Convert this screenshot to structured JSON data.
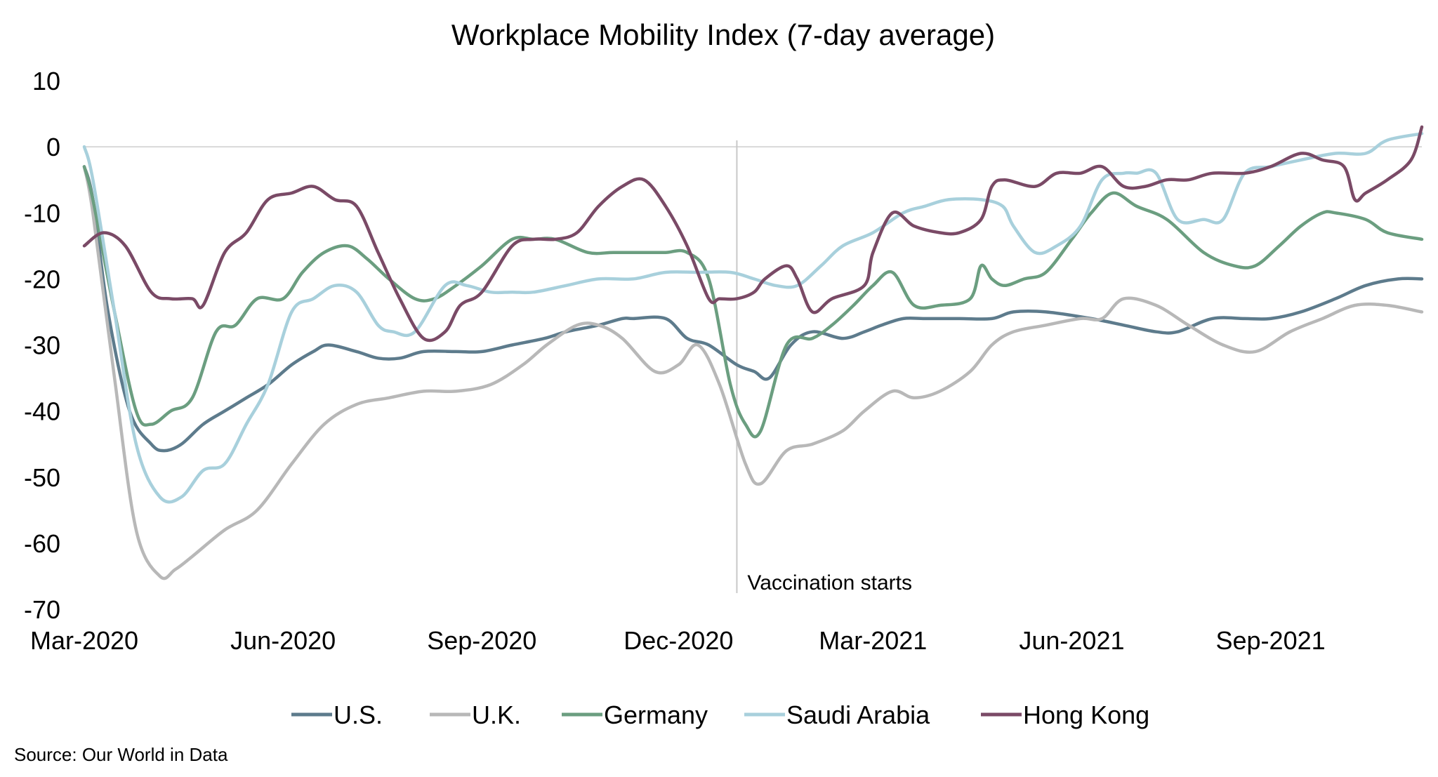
{
  "chart_data": {
    "type": "line",
    "title": "Workplace Mobility Index (7-day average)",
    "source": "Source: Our World in Data",
    "ylim": [
      -70,
      10
    ],
    "yticks": [
      10,
      0,
      -10,
      -20,
      -30,
      -40,
      -50,
      -60,
      -70
    ],
    "x_start": "2020-03-01",
    "x_end": "2021-11-10",
    "x_ticks": [
      {
        "date": "2020-03-01",
        "label": "Mar-2020"
      },
      {
        "date": "2020-06-01",
        "label": "Jun-2020"
      },
      {
        "date": "2020-09-01",
        "label": "Sep-2020"
      },
      {
        "date": "2020-12-01",
        "label": "Dec-2020"
      },
      {
        "date": "2021-03-01",
        "label": "Mar-2021"
      },
      {
        "date": "2021-06-01",
        "label": "Jun-2021"
      },
      {
        "date": "2021-09-01",
        "label": "Sep-2021"
      }
    ],
    "annotation": {
      "date": "2020-12-28",
      "label": "Vaccination starts"
    },
    "grid": false,
    "legend_position": "bottom",
    "series": [
      {
        "name": "U.S.",
        "color": "#5d7b8c",
        "x": [
          "2020-03-01",
          "2020-03-05",
          "2020-03-12",
          "2020-03-22",
          "2020-04-01",
          "2020-04-07",
          "2020-04-15",
          "2020-04-25",
          "2020-05-05",
          "2020-05-15",
          "2020-05-25",
          "2020-06-05",
          "2020-06-15",
          "2020-06-22",
          "2020-07-05",
          "2020-07-15",
          "2020-07-25",
          "2020-08-05",
          "2020-08-20",
          "2020-09-01",
          "2020-09-15",
          "2020-09-30",
          "2020-10-10",
          "2020-10-25",
          "2020-11-05",
          "2020-11-10",
          "2020-11-25",
          "2020-12-05",
          "2020-12-15",
          "2020-12-28",
          "2021-01-05",
          "2021-01-12",
          "2021-01-22",
          "2021-02-01",
          "2021-02-15",
          "2021-02-25",
          "2021-03-05",
          "2021-03-15",
          "2021-03-25",
          "2021-04-10",
          "2021-04-25",
          "2021-05-05",
          "2021-05-20",
          "2021-06-10",
          "2021-06-25",
          "2021-07-10",
          "2021-07-20",
          "2021-08-05",
          "2021-08-20",
          "2021-09-01",
          "2021-09-15",
          "2021-10-01",
          "2021-10-15",
          "2021-10-30",
          "2021-11-10"
        ],
        "values": [
          -3,
          -8,
          -25,
          -40,
          -45,
          -46,
          -45,
          -42,
          -40,
          -38,
          -36,
          -33,
          -31,
          -30,
          -31,
          -32,
          -32,
          -31,
          -31,
          -31,
          -30,
          -29,
          -28,
          -27,
          -26,
          -26,
          -26,
          -29,
          -30,
          -33,
          -34,
          -35,
          -30,
          -28,
          -29,
          -28,
          -27,
          -26,
          -26,
          -26,
          -26,
          -25,
          -25,
          -26,
          -27,
          -28,
          -28,
          -26,
          -26,
          -26,
          -25,
          -23,
          -21,
          -20,
          -20
        ]
      },
      {
        "name": "U.K.",
        "color": "#b8b8b8",
        "x": [
          "2020-03-01",
          "2020-03-05",
          "2020-03-15",
          "2020-03-25",
          "2020-04-05",
          "2020-04-12",
          "2020-04-20",
          "2020-05-05",
          "2020-05-20",
          "2020-06-05",
          "2020-06-20",
          "2020-07-05",
          "2020-07-20",
          "2020-08-05",
          "2020-08-20",
          "2020-09-05",
          "2020-09-20",
          "2020-10-01",
          "2020-10-15",
          "2020-10-25",
          "2020-11-05",
          "2020-11-20",
          "2020-12-01",
          "2020-12-10",
          "2020-12-20",
          "2021-01-01",
          "2021-01-08",
          "2021-01-20",
          "2021-02-01",
          "2021-02-15",
          "2021-02-25",
          "2021-03-10",
          "2021-03-20",
          "2021-04-01",
          "2021-04-15",
          "2021-04-25",
          "2021-05-05",
          "2021-05-20",
          "2021-06-05",
          "2021-06-15",
          "2021-06-25",
          "2021-07-10",
          "2021-07-25",
          "2021-08-10",
          "2021-08-25",
          "2021-09-10",
          "2021-09-25",
          "2021-10-10",
          "2021-10-25",
          "2021-11-10"
        ],
        "values": [
          -3,
          -10,
          -35,
          -58,
          -65,
          -64,
          -62,
          -58,
          -55,
          -48,
          -42,
          -39,
          -38,
          -37,
          -37,
          -36,
          -33,
          -30,
          -27,
          -27,
          -29,
          -34,
          -33,
          -30,
          -36,
          -48,
          -51,
          -46,
          -45,
          -43,
          -40,
          -37,
          -38,
          -37,
          -34,
          -30,
          -28,
          -27,
          -26,
          -26,
          -23,
          -24,
          -27,
          -30,
          -31,
          -28,
          -26,
          -24,
          -24,
          -25
        ]
      },
      {
        "name": "Germany",
        "color": "#6b9e80",
        "x": [
          "2020-03-01",
          "2020-03-05",
          "2020-03-15",
          "2020-03-25",
          "2020-04-01",
          "2020-04-10",
          "2020-04-20",
          "2020-05-01",
          "2020-05-10",
          "2020-05-20",
          "2020-06-01",
          "2020-06-10",
          "2020-06-20",
          "2020-07-01",
          "2020-07-10",
          "2020-07-20",
          "2020-08-01",
          "2020-08-10",
          "2020-08-20",
          "2020-09-01",
          "2020-09-15",
          "2020-09-25",
          "2020-10-05",
          "2020-10-20",
          "2020-11-01",
          "2020-11-15",
          "2020-11-25",
          "2020-12-05",
          "2020-12-15",
          "2020-12-25",
          "2021-01-01",
          "2021-01-08",
          "2021-01-20",
          "2021-02-01",
          "2021-02-10",
          "2021-02-20",
          "2021-03-01",
          "2021-03-10",
          "2021-03-20",
          "2021-04-01",
          "2021-04-15",
          "2021-04-20",
          "2021-04-25",
          "2021-05-01",
          "2021-05-10",
          "2021-05-20",
          "2021-06-01",
          "2021-06-10",
          "2021-06-20",
          "2021-07-01",
          "2021-07-15",
          "2021-08-01",
          "2021-08-15",
          "2021-08-25",
          "2021-09-05",
          "2021-09-15",
          "2021-09-25",
          "2021-10-01",
          "2021-10-15",
          "2021-10-25",
          "2021-11-10"
        ],
        "values": [
          -3,
          -8,
          -25,
          -40,
          -42,
          -40,
          -38,
          -28,
          -27,
          -23,
          -23,
          -19,
          -16,
          -15,
          -17,
          -20,
          -23,
          -23,
          -21,
          -18,
          -14,
          -14,
          -14,
          -16,
          -16,
          -16,
          -16,
          -16,
          -20,
          -36,
          -42,
          -43,
          -30,
          -29,
          -27,
          -24,
          -21,
          -19,
          -24,
          -24,
          -23,
          -18,
          -20,
          -21,
          -20,
          -19,
          -14,
          -10,
          -7,
          -9,
          -11,
          -16,
          -18,
          -18,
          -15,
          -12,
          -10,
          -10,
          -11,
          -13,
          -14
        ]
      },
      {
        "name": "Saudi Arabia",
        "color": "#a8d0dc",
        "x": [
          "2020-03-01",
          "2020-03-05",
          "2020-03-15",
          "2020-03-25",
          "2020-04-05",
          "2020-04-15",
          "2020-04-25",
          "2020-05-05",
          "2020-05-15",
          "2020-05-25",
          "2020-06-05",
          "2020-06-15",
          "2020-06-25",
          "2020-07-05",
          "2020-07-15",
          "2020-07-22",
          "2020-08-01",
          "2020-08-15",
          "2020-08-25",
          "2020-09-05",
          "2020-09-15",
          "2020-09-25",
          "2020-10-10",
          "2020-10-25",
          "2020-11-10",
          "2020-11-25",
          "2020-12-10",
          "2020-12-25",
          "2021-01-05",
          "2021-01-15",
          "2021-01-25",
          "2021-02-05",
          "2021-02-15",
          "2021-03-01",
          "2021-03-15",
          "2021-03-25",
          "2021-04-05",
          "2021-04-20",
          "2021-04-30",
          "2021-05-05",
          "2021-05-15",
          "2021-05-25",
          "2021-06-05",
          "2021-06-15",
          "2021-06-25",
          "2021-07-01",
          "2021-07-10",
          "2021-07-20",
          "2021-08-01",
          "2021-08-10",
          "2021-08-20",
          "2021-09-01",
          "2021-09-15",
          "2021-10-01",
          "2021-10-15",
          "2021-10-25",
          "2021-11-10"
        ],
        "values": [
          0,
          -5,
          -25,
          -45,
          -53,
          -53,
          -49,
          -48,
          -42,
          -36,
          -25,
          -23,
          -21,
          -22,
          -27,
          -28,
          -28,
          -21,
          -21,
          -22,
          -22,
          -22,
          -21,
          -20,
          -20,
          -19,
          -19,
          -19,
          -20,
          -21,
          -21,
          -18,
          -15,
          -13,
          -10,
          -9,
          -8,
          -8,
          -9,
          -12,
          -16,
          -15,
          -12,
          -5,
          -4,
          -4,
          -4,
          -11,
          -11,
          -11,
          -4,
          -3,
          -2,
          -1,
          -1,
          1,
          2
        ]
      },
      {
        "name": "Hong Kong",
        "color": "#7a4a66",
        "x": [
          "2020-03-01",
          "2020-03-10",
          "2020-03-20",
          "2020-04-01",
          "2020-04-10",
          "2020-04-20",
          "2020-04-25",
          "2020-05-05",
          "2020-05-15",
          "2020-05-25",
          "2020-06-05",
          "2020-06-15",
          "2020-06-25",
          "2020-07-05",
          "2020-07-15",
          "2020-07-25",
          "2020-08-05",
          "2020-08-15",
          "2020-08-22",
          "2020-09-01",
          "2020-09-15",
          "2020-09-25",
          "2020-10-05",
          "2020-10-15",
          "2020-10-25",
          "2020-11-05",
          "2020-11-15",
          "2020-11-25",
          "2020-12-05",
          "2020-12-15",
          "2020-12-20",
          "2020-12-28",
          "2021-01-05",
          "2021-01-10",
          "2021-01-20",
          "2021-01-25",
          "2021-02-01",
          "2021-02-10",
          "2021-02-25",
          "2021-03-01",
          "2021-03-10",
          "2021-03-20",
          "2021-04-01",
          "2021-04-10",
          "2021-04-20",
          "2021-04-25",
          "2021-05-01",
          "2021-05-15",
          "2021-05-25",
          "2021-06-05",
          "2021-06-15",
          "2021-06-25",
          "2021-07-05",
          "2021-07-15",
          "2021-07-25",
          "2021-08-05",
          "2021-08-20",
          "2021-09-01",
          "2021-09-15",
          "2021-09-25",
          "2021-10-05",
          "2021-10-10",
          "2021-10-15",
          "2021-10-25",
          "2021-11-05",
          "2021-11-10"
        ],
        "values": [
          -15,
          -13,
          -15,
          -22,
          -23,
          -23,
          -24,
          -16,
          -13,
          -8,
          -7,
          -6,
          -8,
          -9,
          -16,
          -23,
          -29,
          -28,
          -24,
          -22,
          -15,
          -14,
          -14,
          -13,
          -9,
          -6,
          -5,
          -9,
          -15,
          -23,
          -23,
          -23,
          -22,
          -20,
          -18,
          -20,
          -25,
          -23,
          -21,
          -16,
          -10,
          -12,
          -13,
          -13,
          -11,
          -6,
          -5,
          -6,
          -4,
          -4,
          -3,
          -6,
          -6,
          -5,
          -5,
          -4,
          -4,
          -3,
          -1,
          -2,
          -3,
          -8,
          -7,
          -5,
          -2,
          3
        ]
      }
    ]
  }
}
